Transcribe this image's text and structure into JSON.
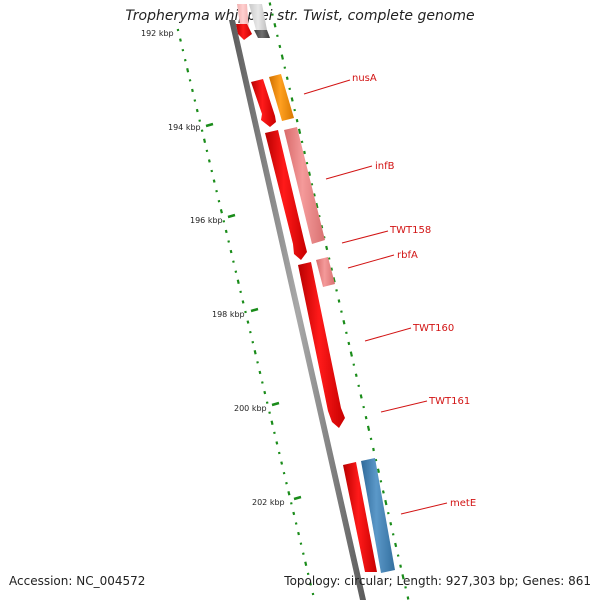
{
  "title": "Tropheryma whipplei str. Twist, complete genome",
  "accession": "Accession: NC_004572",
  "summary": "Topology: circular; Length: 927,303 bp; Genes: 861",
  "ticks": [
    {
      "label": "192 kbp"
    },
    {
      "label": "194 kbp"
    },
    {
      "label": "196 kbp"
    },
    {
      "label": "198 kbp"
    },
    {
      "label": "200 kbp"
    },
    {
      "label": "202 kbp"
    }
  ],
  "genes": [
    {
      "name": "nusA"
    },
    {
      "name": "infB"
    },
    {
      "name": "TWT158"
    },
    {
      "name": "rbfA"
    },
    {
      "name": "TWT160"
    },
    {
      "name": "TWT161"
    },
    {
      "name": "metE"
    }
  ],
  "colors": {
    "forward_cds": "#ff0000",
    "reverse_cds": "#f08080",
    "highlight_cds": "#ff8c00",
    "operon_cds": "#4682b4",
    "backbone": "#808080",
    "gc_dots": "#1a8c1a",
    "label_line": "#d21414"
  }
}
